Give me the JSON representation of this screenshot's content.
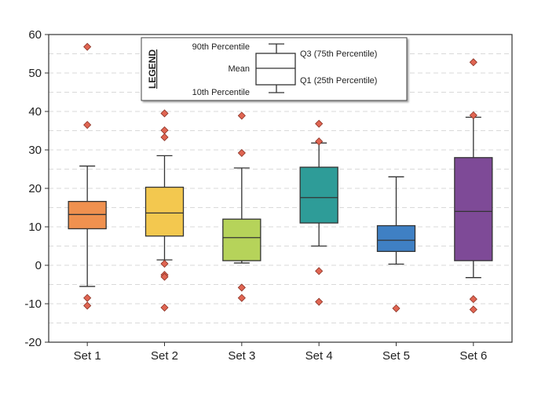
{
  "chart_data": {
    "type": "boxplot",
    "title": "",
    "xlabel": "",
    "ylabel": "",
    "ylim": [
      -20,
      60
    ],
    "yticks": [
      -20,
      -10,
      0,
      10,
      20,
      30,
      40,
      50,
      60
    ],
    "grid": "horizontal dashed",
    "categories": [
      "Set 1",
      "Set 2",
      "Set 3",
      "Set 4",
      "Set 5",
      "Set 6"
    ],
    "series": [
      {
        "category": "Set 1",
        "color": "#f0914f",
        "p10": -5.5,
        "q1": 9.5,
        "mean": 13.2,
        "q3": 16.6,
        "p90": 25.8,
        "outliers": [
          56.8,
          36.5,
          -8.5,
          -10.5
        ]
      },
      {
        "category": "Set 2",
        "color": "#f3c84f",
        "p10": 1.4,
        "q1": 7.6,
        "mean": 13.6,
        "q3": 20.3,
        "p90": 28.5,
        "outliers": [
          39.5,
          35.1,
          33.3,
          0.4,
          -2.5,
          -3.0,
          -11.0
        ]
      },
      {
        "category": "Set 3",
        "color": "#b6d35a",
        "p10": 0.6,
        "q1": 1.2,
        "mean": 7.2,
        "q3": 12.0,
        "p90": 25.3,
        "outliers": [
          38.9,
          29.2,
          -5.8,
          -8.5
        ]
      },
      {
        "category": "Set 4",
        "color": "#2e9c98",
        "p10": 5.0,
        "q1": 11.0,
        "mean": 17.6,
        "q3": 25.5,
        "p90": 31.8,
        "outliers": [
          36.8,
          32.2,
          -1.5,
          -9.5
        ]
      },
      {
        "category": "Set 5",
        "color": "#3f80c4",
        "p10": 0.3,
        "q1": 3.6,
        "mean": 6.5,
        "q3": 10.3,
        "p90": 23.0,
        "outliers": [
          -11.2
        ]
      },
      {
        "category": "Set 6",
        "color": "#7e4a97",
        "p10": -3.2,
        "q1": 1.2,
        "mean": 14.0,
        "q3": 28.0,
        "p90": 38.5,
        "outliers": [
          52.8,
          39.0,
          -8.8,
          -11.5
        ]
      }
    ],
    "outlier_color": "#e06552",
    "legend": {
      "title": "LEGEND",
      "placement": "top-center",
      "p90": "90th Percentile",
      "mean": "Mean",
      "p10": "10th Percentile",
      "q3": "Q3 (75th Percentile)",
      "q1": "Q1 (25th Percentile)"
    }
  }
}
